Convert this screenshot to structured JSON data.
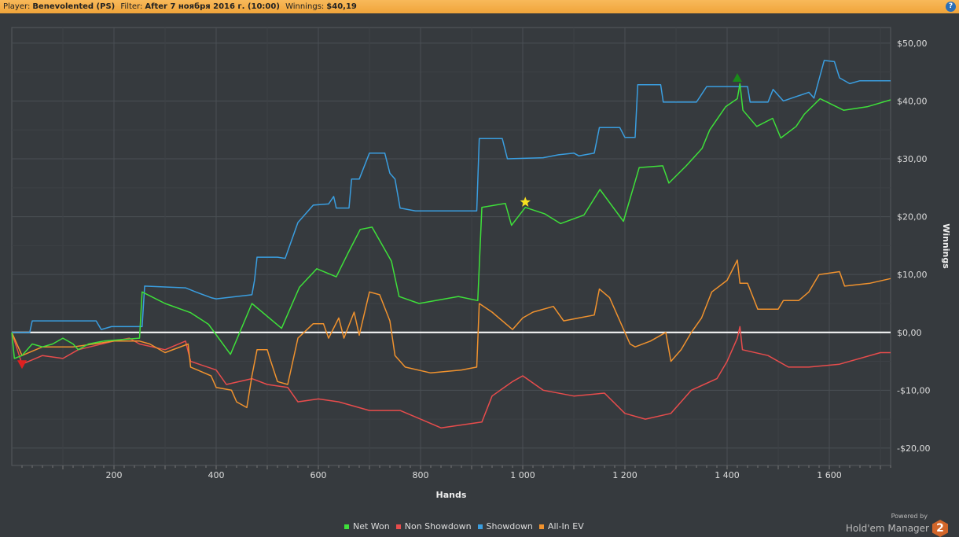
{
  "header": {
    "player_label": "Player:",
    "player": "Benevolented (PS)",
    "filter_label": "Filter:",
    "filter": "After 7 ноября 2016 г. (10:00)",
    "winnings_label": "Winnings:",
    "winnings": "$40,19",
    "help": "?"
  },
  "branding": {
    "powered_by": "Powered by",
    "product": "Hold'em Manager",
    "version": "2"
  },
  "chart_data": {
    "type": "line",
    "xlabel": "Hands",
    "ylabel": "Winnings",
    "xlim": [
      0,
      1720
    ],
    "ylim": [
      -23,
      52.7
    ],
    "x_ticks": [
      200,
      400,
      600,
      800,
      1000,
      1200,
      1400,
      1600
    ],
    "x_tick_labels": [
      "200",
      "400",
      "600",
      "800",
      "1 000",
      "1 200",
      "1 400",
      "1 600"
    ],
    "y_ticks": [
      -20,
      -10,
      0,
      10,
      20,
      30,
      40,
      50
    ],
    "y_tick_labels": [
      "-$20,00",
      "-$10,00",
      "$0,00",
      "$10,00",
      "$20,00",
      "$30,00",
      "$40,00",
      "$50,00"
    ],
    "grid": true,
    "legend": "bottom",
    "series": [
      {
        "name": "Net Won",
        "color": "#3ee03a",
        "points": [
          [
            0,
            0
          ],
          [
            5,
            -4.5
          ],
          [
            20,
            -4
          ],
          [
            40,
            -2
          ],
          [
            60,
            -2.5
          ],
          [
            80,
            -2
          ],
          [
            100,
            -1
          ],
          [
            120,
            -2
          ],
          [
            130,
            -3
          ],
          [
            150,
            -2
          ],
          [
            180,
            -1.5
          ],
          [
            250,
            -1
          ],
          [
            255,
            7
          ],
          [
            300,
            5
          ],
          [
            350,
            3.4
          ],
          [
            385,
            1.4
          ],
          [
            428,
            -3.8
          ],
          [
            470,
            5
          ],
          [
            528,
            0.7
          ],
          [
            563,
            7.8
          ],
          [
            597,
            11
          ],
          [
            635,
            9.6
          ],
          [
            658,
            13.7
          ],
          [
            682,
            17.8
          ],
          [
            705,
            18.2
          ],
          [
            743,
            12.3
          ],
          [
            758,
            6.2
          ],
          [
            797,
            5
          ],
          [
            874,
            6.2
          ],
          [
            912,
            5.5
          ],
          [
            920,
            21.6
          ],
          [
            966,
            22.3
          ],
          [
            978,
            18.5
          ],
          [
            1005,
            21.6
          ],
          [
            1043,
            20.5
          ],
          [
            1074,
            18.8
          ],
          [
            1120,
            20.3
          ],
          [
            1151,
            24.7
          ],
          [
            1197,
            19.2
          ],
          [
            1228,
            28.5
          ],
          [
            1274,
            28.8
          ],
          [
            1286,
            25.8
          ],
          [
            1320,
            28.8
          ],
          [
            1351,
            31.8
          ],
          [
            1366,
            35
          ],
          [
            1397,
            39
          ],
          [
            1420,
            40.4
          ],
          [
            1425,
            43
          ],
          [
            1431,
            38.4
          ],
          [
            1458,
            35.6
          ],
          [
            1489,
            37
          ],
          [
            1505,
            33.6
          ],
          [
            1535,
            35.6
          ],
          [
            1551,
            37.7
          ],
          [
            1582,
            40.4
          ],
          [
            1628,
            38.4
          ],
          [
            1674,
            39
          ],
          [
            1720,
            40.19
          ]
        ]
      },
      {
        "name": "Non Showdown",
        "color": "#e84c4c",
        "points": [
          [
            0,
            0
          ],
          [
            20,
            -5.5
          ],
          [
            60,
            -4
          ],
          [
            100,
            -4.5
          ],
          [
            130,
            -3
          ],
          [
            200,
            -1.5
          ],
          [
            230,
            -1
          ],
          [
            250,
            -2
          ],
          [
            300,
            -3
          ],
          [
            340,
            -1.5
          ],
          [
            350,
            -5
          ],
          [
            400,
            -6.5
          ],
          [
            420,
            -9
          ],
          [
            470,
            -8
          ],
          [
            500,
            -9
          ],
          [
            540,
            -9.5
          ],
          [
            560,
            -12
          ],
          [
            600,
            -11.5
          ],
          [
            640,
            -12
          ],
          [
            700,
            -13.5
          ],
          [
            760,
            -13.5
          ],
          [
            800,
            -15
          ],
          [
            840,
            -16.5
          ],
          [
            880,
            -16
          ],
          [
            920,
            -15.5
          ],
          [
            940,
            -11
          ],
          [
            980,
            -8.5
          ],
          [
            1000,
            -7.5
          ],
          [
            1040,
            -10
          ],
          [
            1100,
            -11
          ],
          [
            1160,
            -10.5
          ],
          [
            1200,
            -14
          ],
          [
            1240,
            -15
          ],
          [
            1290,
            -14
          ],
          [
            1330,
            -10
          ],
          [
            1380,
            -8
          ],
          [
            1400,
            -5
          ],
          [
            1420,
            -1
          ],
          [
            1425,
            1
          ],
          [
            1430,
            -3
          ],
          [
            1480,
            -4
          ],
          [
            1520,
            -6
          ],
          [
            1560,
            -6
          ],
          [
            1620,
            -5.5
          ],
          [
            1700,
            -3.5
          ],
          [
            1720,
            -3.5
          ]
        ]
      },
      {
        "name": "Showdown",
        "color": "#3a9ee0",
        "points": [
          [
            0,
            0
          ],
          [
            35,
            0
          ],
          [
            40,
            2
          ],
          [
            165,
            2
          ],
          [
            175,
            0.5
          ],
          [
            195,
            1
          ],
          [
            255,
            1
          ],
          [
            260,
            8
          ],
          [
            340,
            7.7
          ],
          [
            360,
            7
          ],
          [
            390,
            6
          ],
          [
            400,
            5.8
          ],
          [
            470,
            6.5
          ],
          [
            475,
            9
          ],
          [
            480,
            13
          ],
          [
            520,
            13
          ],
          [
            535,
            12.8
          ],
          [
            560,
            19
          ],
          [
            590,
            22
          ],
          [
            620,
            22.2
          ],
          [
            630,
            23.5
          ],
          [
            635,
            21.5
          ],
          [
            660,
            21.5
          ],
          [
            665,
            26.5
          ],
          [
            680,
            26.5
          ],
          [
            700,
            31
          ],
          [
            730,
            31
          ],
          [
            740,
            27.5
          ],
          [
            750,
            26.5
          ],
          [
            760,
            21.5
          ],
          [
            790,
            21
          ],
          [
            910,
            21
          ],
          [
            915,
            33.5
          ],
          [
            960,
            33.5
          ],
          [
            970,
            30
          ],
          [
            1040,
            30.2
          ],
          [
            1070,
            30.7
          ],
          [
            1100,
            31
          ],
          [
            1110,
            30.5
          ],
          [
            1140,
            31
          ],
          [
            1150,
            35.4
          ],
          [
            1190,
            35.4
          ],
          [
            1200,
            33.7
          ],
          [
            1220,
            33.7
          ],
          [
            1225,
            42.8
          ],
          [
            1270,
            42.8
          ],
          [
            1275,
            39.8
          ],
          [
            1340,
            39.8
          ],
          [
            1360,
            42.5
          ],
          [
            1440,
            42.5
          ],
          [
            1445,
            39.8
          ],
          [
            1480,
            39.8
          ],
          [
            1490,
            42
          ],
          [
            1510,
            40
          ],
          [
            1560,
            41.5
          ],
          [
            1570,
            40.5
          ],
          [
            1590,
            47
          ],
          [
            1610,
            46.8
          ],
          [
            1620,
            44
          ],
          [
            1640,
            43
          ],
          [
            1660,
            43.5
          ],
          [
            1720,
            43.5
          ]
        ]
      },
      {
        "name": "All-In EV",
        "color": "#f0922e",
        "points": [
          [
            0,
            0
          ],
          [
            20,
            -4
          ],
          [
            60,
            -2.5
          ],
          [
            120,
            -2.5
          ],
          [
            200,
            -1.5
          ],
          [
            250,
            -1.5
          ],
          [
            270,
            -2
          ],
          [
            300,
            -3.5
          ],
          [
            345,
            -2
          ],
          [
            350,
            -6
          ],
          [
            390,
            -7.5
          ],
          [
            400,
            -9.5
          ],
          [
            430,
            -10
          ],
          [
            440,
            -12
          ],
          [
            460,
            -13
          ],
          [
            470,
            -7.5
          ],
          [
            480,
            -3
          ],
          [
            500,
            -3
          ],
          [
            505,
            -4.5
          ],
          [
            520,
            -8.5
          ],
          [
            540,
            -9
          ],
          [
            560,
            -1
          ],
          [
            590,
            1.5
          ],
          [
            610,
            1.5
          ],
          [
            620,
            -1
          ],
          [
            640,
            2.5
          ],
          [
            650,
            -1
          ],
          [
            670,
            3.5
          ],
          [
            680,
            -0.5
          ],
          [
            700,
            7
          ],
          [
            720,
            6.5
          ],
          [
            740,
            2
          ],
          [
            750,
            -4
          ],
          [
            770,
            -6
          ],
          [
            820,
            -7
          ],
          [
            880,
            -6.5
          ],
          [
            910,
            -6
          ],
          [
            915,
            5
          ],
          [
            940,
            3.5
          ],
          [
            980,
            0.5
          ],
          [
            1000,
            2.5
          ],
          [
            1020,
            3.5
          ],
          [
            1060,
            4.5
          ],
          [
            1080,
            2
          ],
          [
            1110,
            2.5
          ],
          [
            1140,
            3
          ],
          [
            1150,
            7.5
          ],
          [
            1170,
            6
          ],
          [
            1190,
            2
          ],
          [
            1210,
            -2
          ],
          [
            1220,
            -2.5
          ],
          [
            1250,
            -1.5
          ],
          [
            1280,
            0
          ],
          [
            1290,
            -5
          ],
          [
            1310,
            -3
          ],
          [
            1330,
            0
          ],
          [
            1350,
            2.5
          ],
          [
            1370,
            7
          ],
          [
            1400,
            9
          ],
          [
            1420,
            12.5
          ],
          [
            1425,
            8.5
          ],
          [
            1440,
            8.5
          ],
          [
            1460,
            4
          ],
          [
            1500,
            4
          ],
          [
            1510,
            5.5
          ],
          [
            1540,
            5.5
          ],
          [
            1560,
            7
          ],
          [
            1580,
            10
          ],
          [
            1620,
            10.5
          ],
          [
            1630,
            8
          ],
          [
            1680,
            8.5
          ],
          [
            1720,
            9.3
          ]
        ]
      }
    ],
    "markers": [
      {
        "type": "triangle-down",
        "color": "#e02020",
        "x": 20,
        "y": -5.5
      },
      {
        "type": "star",
        "color": "#f8e020",
        "x": 1005,
        "y": 22.5
      },
      {
        "type": "triangle-up",
        "color": "#1a8a1a",
        "x": 1420,
        "y": 44
      }
    ]
  }
}
